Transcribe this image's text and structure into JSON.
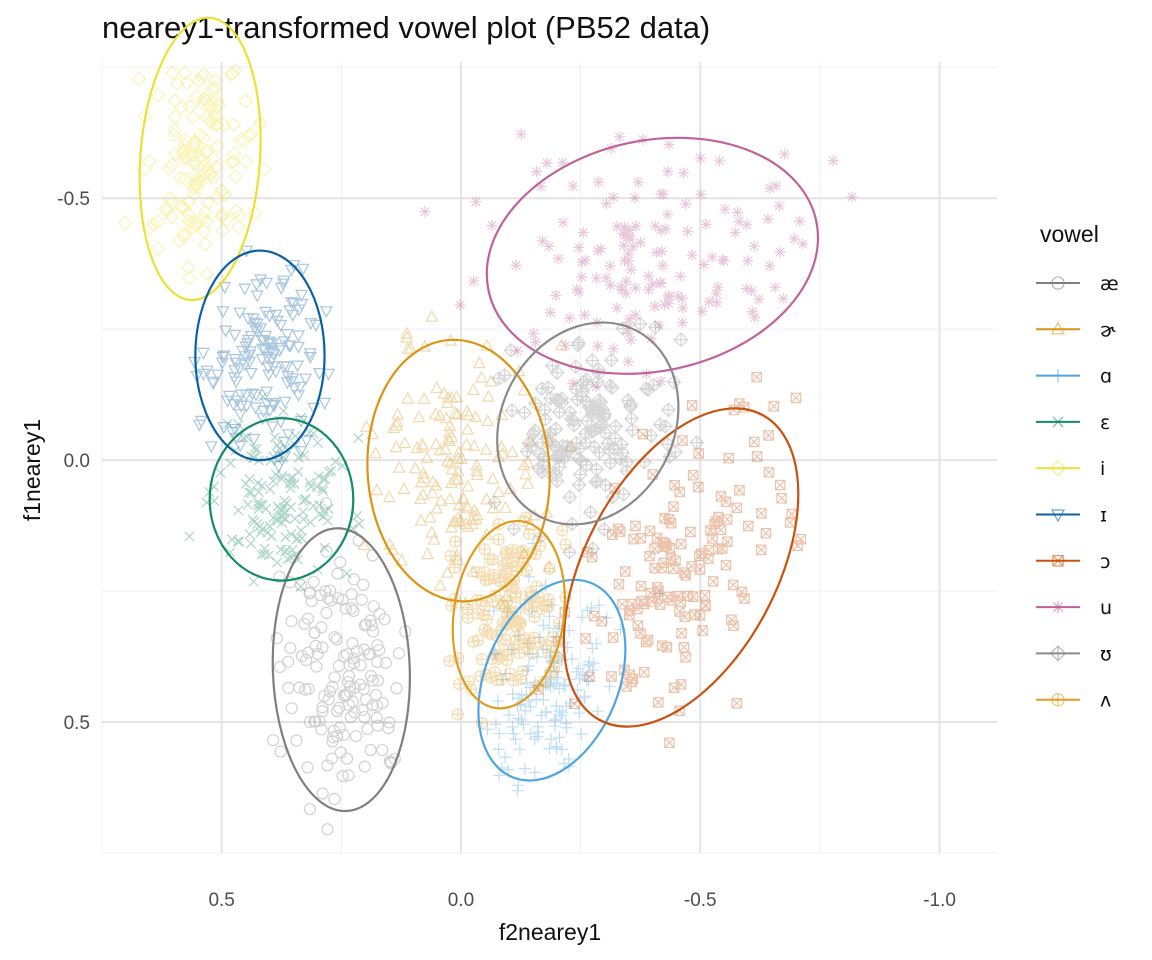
{
  "chart_data": {
    "type": "scatter",
    "title": "nearey1-transformed vowel plot (PB52 data)",
    "xlabel": "f2nearey1",
    "ylabel": "f1nearey1",
    "x_reversed": true,
    "y_reversed": true,
    "xlim": [
      0.75,
      -1.12
    ],
    "ylim": [
      -0.76,
      0.75
    ],
    "xticks": [
      0.5,
      0.0,
      -0.5,
      -1.0
    ],
    "xtick_labels": [
      "0.5",
      "0.0",
      "-0.5",
      "-1.0"
    ],
    "yticks": [
      -0.5,
      0.0,
      0.5
    ],
    "ytick_labels": [
      "-0.5",
      "0.0",
      "0.5"
    ],
    "grid": true,
    "legend_title": "vowel",
    "legend_position": "right",
    "series": [
      {
        "name": "æ",
        "color": "#7f7f7f",
        "shape": "circle",
        "ellipse": {
          "cx": 0.25,
          "cy": 0.4,
          "rx": 0.143,
          "ry": 0.27,
          "angle": -2
        }
      },
      {
        "name": "ɚ",
        "color": "#d99412",
        "shape": "triangle",
        "ellipse": {
          "cx": 0.005,
          "cy": 0.02,
          "rx": 0.19,
          "ry": 0.25,
          "angle": -4
        }
      },
      {
        "name": "ɑ",
        "color": "#4ea5e1",
        "shape": "plus",
        "ellipse": {
          "cx": -0.19,
          "cy": 0.42,
          "rx": 0.14,
          "ry": 0.2,
          "angle": 22
        }
      },
      {
        "name": "ɛ",
        "color": "#138c63",
        "shape": "x",
        "ellipse": {
          "cx": 0.375,
          "cy": 0.075,
          "rx": 0.15,
          "ry": 0.155,
          "angle": 0
        }
      },
      {
        "name": "i",
        "color": "#ece132",
        "shape": "diamond",
        "ellipse": {
          "cx": 0.545,
          "cy": -0.575,
          "rx": 0.125,
          "ry": 0.27,
          "angle": 4
        }
      },
      {
        "name": "ɪ",
        "color": "#0a60a6",
        "shape": "triangle-down",
        "ellipse": {
          "cx": 0.42,
          "cy": -0.2,
          "rx": 0.135,
          "ry": 0.2,
          "angle": 0
        }
      },
      {
        "name": "ɔ",
        "color": "#c9520e",
        "shape": "square-x",
        "ellipse": {
          "cx": -0.46,
          "cy": 0.205,
          "rx": 0.2,
          "ry": 0.33,
          "angle": 28
        }
      },
      {
        "name": "u",
        "color": "#c0619b",
        "shape": "asterisk",
        "ellipse": {
          "cx": -0.4,
          "cy": -0.39,
          "rx": 0.35,
          "ry": 0.22,
          "angle": -12
        }
      },
      {
        "name": "ʊ",
        "color": "#8a8a8a",
        "shape": "diamond-plus",
        "ellipse": {
          "cx": -0.265,
          "cy": -0.07,
          "rx": 0.18,
          "ry": 0.2,
          "angle": 28
        }
      },
      {
        "name": "ʌ",
        "color": "#e09c1f",
        "shape": "circle-plus",
        "ellipse": {
          "cx": -0.1,
          "cy": 0.295,
          "rx": 0.115,
          "ry": 0.18,
          "angle": 8
        }
      }
    ]
  }
}
